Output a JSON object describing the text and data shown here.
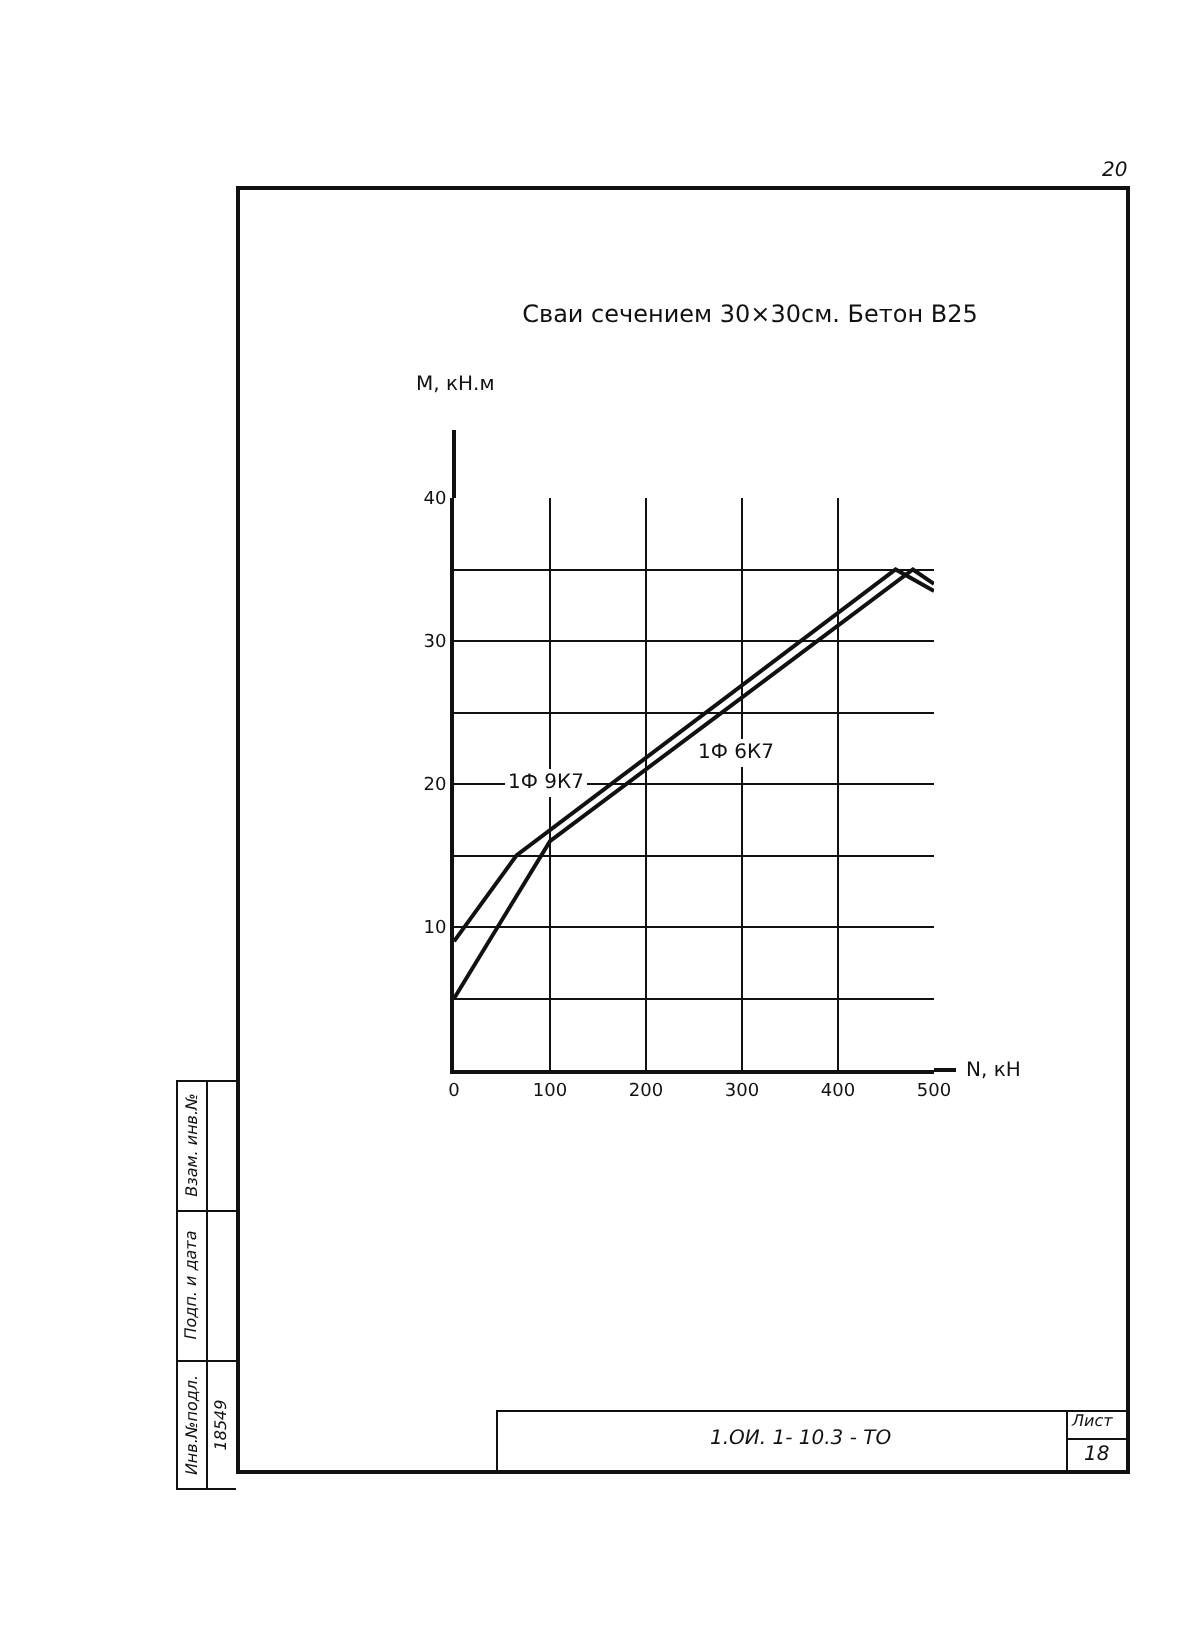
{
  "chart_data": {
    "type": "line",
    "title": "Сваи сечением 30×30см. Бетон В25",
    "xlabel": "N, кН",
    "ylabel": "M, кН.м",
    "series": [
      {
        "name": "1Ф 9К7",
        "color": "#111111",
        "x": [
          0,
          65,
          460,
          500
        ],
        "values": [
          9,
          15,
          35,
          33.5
        ]
      },
      {
        "name": "1Ф 6К7",
        "color": "#111111",
        "x": [
          0,
          100,
          478,
          500
        ],
        "values": [
          5,
          16,
          35,
          34
        ]
      }
    ],
    "xlim": [
      0,
      500
    ],
    "ylim": [
      0,
      40
    ],
    "xticks": [
      0,
      100,
      200,
      300,
      400,
      500
    ],
    "yticks": [
      {
        "value": 5,
        "label": null
      },
      10,
      {
        "value": 15,
        "label": null
      },
      20,
      {
        "value": 25,
        "label": null
      },
      30,
      {
        "value": 35,
        "label": null
      },
      40
    ],
    "grid": true,
    "legend": false,
    "marker": "none",
    "line_style": "solid",
    "annotations": [
      "20",
      "1.ОИ. 1- 10.3 - ТО",
      "Лист",
      "18",
      "Инв.№подл.",
      "18549",
      "Подп. и дата",
      "Взам. инв.№"
    ]
  }
}
